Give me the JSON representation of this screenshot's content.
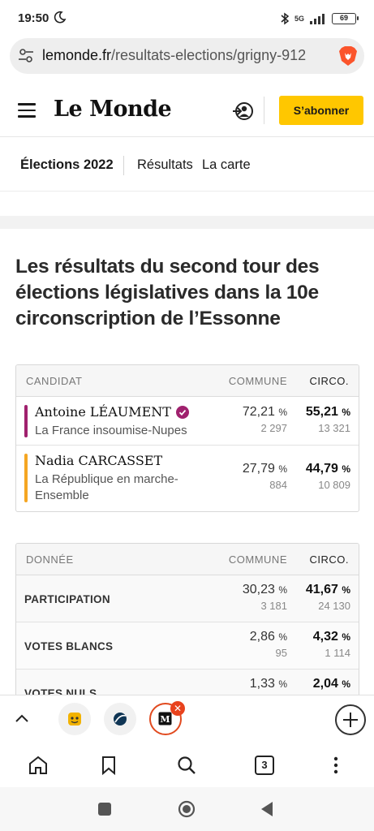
{
  "status_bar": {
    "time": "19:50",
    "network": "5G",
    "battery": "69"
  },
  "url_bar": {
    "host": "lemonde.fr",
    "path": "/resultats-elections/grigny-912"
  },
  "header": {
    "logo": "Le Monde",
    "subscribe_label": "S’abonner"
  },
  "nav": {
    "section": "Élections 2022",
    "items": [
      "Résultats",
      "La carte"
    ]
  },
  "article": {
    "headline": "Les résultats du second tour des élections législatives dans la 10e circonscription de l’Essonne"
  },
  "candidates_table": {
    "headers": {
      "candidate": "CANDIDAT",
      "commune": "COMMUNE",
      "circo": "CIRCO."
    },
    "rows": [
      {
        "name": "Antoine LÉAUMENT",
        "party": "La France insoumise-Nupes",
        "color": "#a0216e",
        "elected": true,
        "commune_pct": "72,21",
        "commune_votes": "2 297",
        "circo_pct": "55,21",
        "circo_votes": "13 321"
      },
      {
        "name": "Nadia CARCASSET",
        "party": "La République en marche-Ensemble",
        "color": "#f5a623",
        "elected": false,
        "commune_pct": "27,79",
        "commune_votes": "884",
        "circo_pct": "44,79",
        "circo_votes": "10 809"
      }
    ],
    "pct_unit": "%"
  },
  "data_table": {
    "headers": {
      "data": "DONNÉE",
      "commune": "COMMUNE",
      "circo": "CIRCO."
    },
    "rows": [
      {
        "label": "PARTICIPATION",
        "commune_pct": "30,23",
        "commune_votes": "3 181",
        "circo_pct": "41,67",
        "circo_votes": "24 130"
      },
      {
        "label": "VOTES BLANCS",
        "commune_pct": "2,86",
        "commune_votes": "95",
        "circo_pct": "4,32",
        "circo_votes": "1 114"
      },
      {
        "label": "VOTES NULS",
        "commune_pct": "1,33",
        "commune_votes": "",
        "circo_pct": "2,04",
        "circo_votes": ""
      }
    ]
  },
  "browser": {
    "tab_count": "3",
    "accent": "#e14a1f"
  }
}
